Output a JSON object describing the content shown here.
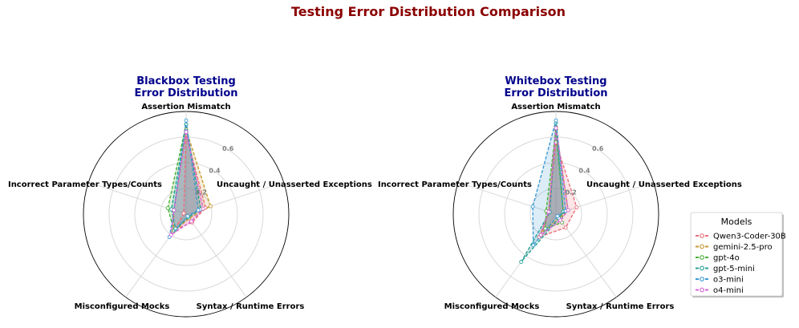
{
  "title": "Testing Error Distribution Comparison",
  "colors": {
    "title": "#8b0000",
    "subtitle": "#00008b"
  },
  "chart_data": [
    {
      "type": "radar",
      "title": "Blackbox Testing\nError Distribution",
      "axes": [
        "Assertion Mismatch",
        "Uncaught / Unasserted Exceptions",
        "Syntax / Runtime Errors",
        "Misconfigured Mocks",
        "Incorrect Parameter Types/Counts"
      ],
      "rlim": [
        0,
        0.8
      ],
      "rticks": [
        0.2,
        0.4,
        0.6
      ],
      "rtick_labels": [
        "0.2",
        "0.4",
        "0.6"
      ],
      "grid": true,
      "series": [
        {
          "name": "Qwen3-Coder-30B",
          "color": "#e9707c",
          "values": [
            0.62,
            0.16,
            0.08,
            0.15,
            0.02
          ]
        },
        {
          "name": "gemini-2.5-pro",
          "color": "#c69a34",
          "values": [
            0.66,
            0.2,
            0.04,
            0.17,
            0.1
          ]
        },
        {
          "name": "gpt-4o",
          "color": "#4daf3a",
          "values": [
            0.7,
            0.12,
            0.03,
            0.16,
            0.15
          ]
        },
        {
          "name": "gpt-5-mini",
          "color": "#2aa198",
          "values": [
            0.7,
            0.12,
            0.03,
            0.14,
            0.12
          ]
        },
        {
          "name": "o3-mini",
          "color": "#3c9ad4",
          "values": [
            0.73,
            0.1,
            0.02,
            0.22,
            0.1
          ]
        },
        {
          "name": "o4-mini",
          "color": "#d664d6",
          "values": [
            0.64,
            0.14,
            0.07,
            0.2,
            0.1
          ]
        }
      ]
    },
    {
      "type": "radar",
      "title": "Whitebox Testing\nError Distribution",
      "axes": [
        "Assertion Mismatch",
        "Uncaught / Unasserted Exceptions",
        "Syntax / Runtime Errors",
        "Misconfigured Mocks",
        "Incorrect Parameter Types/Counts"
      ],
      "rlim": [
        0,
        0.8
      ],
      "rticks": [
        0.2,
        0.4,
        0.6
      ],
      "rtick_labels": [
        "0.2",
        "0.4",
        "0.6"
      ],
      "grid": true,
      "series": [
        {
          "name": "Qwen3-Coder-30B",
          "color": "#e9707c",
          "values": [
            0.56,
            0.17,
            0.13,
            0.22,
            0.06
          ]
        },
        {
          "name": "gemini-2.5-pro",
          "color": "#c69a34",
          "values": [
            0.68,
            0.1,
            0.04,
            0.18,
            0.06
          ]
        },
        {
          "name": "gpt-4o",
          "color": "#4daf3a",
          "values": [
            0.66,
            0.06,
            0.08,
            0.14,
            0.08
          ]
        },
        {
          "name": "gpt-5-mini",
          "color": "#2aa198",
          "values": [
            0.71,
            0.06,
            0.04,
            0.46,
            0.05
          ]
        },
        {
          "name": "o3-mini",
          "color": "#3c9ad4",
          "values": [
            0.73,
            0.08,
            0.02,
            0.3,
            0.19
          ]
        },
        {
          "name": "o4-mini",
          "color": "#d664d6",
          "values": [
            0.67,
            0.1,
            0.06,
            0.2,
            0.06
          ]
        }
      ]
    }
  ],
  "legend": {
    "title": "Models",
    "placement": "right",
    "items": [
      "Qwen3-Coder-30B",
      "gemini-2.5-pro",
      "gpt-4o",
      "gpt-5-mini",
      "o3-mini",
      "o4-mini"
    ]
  }
}
